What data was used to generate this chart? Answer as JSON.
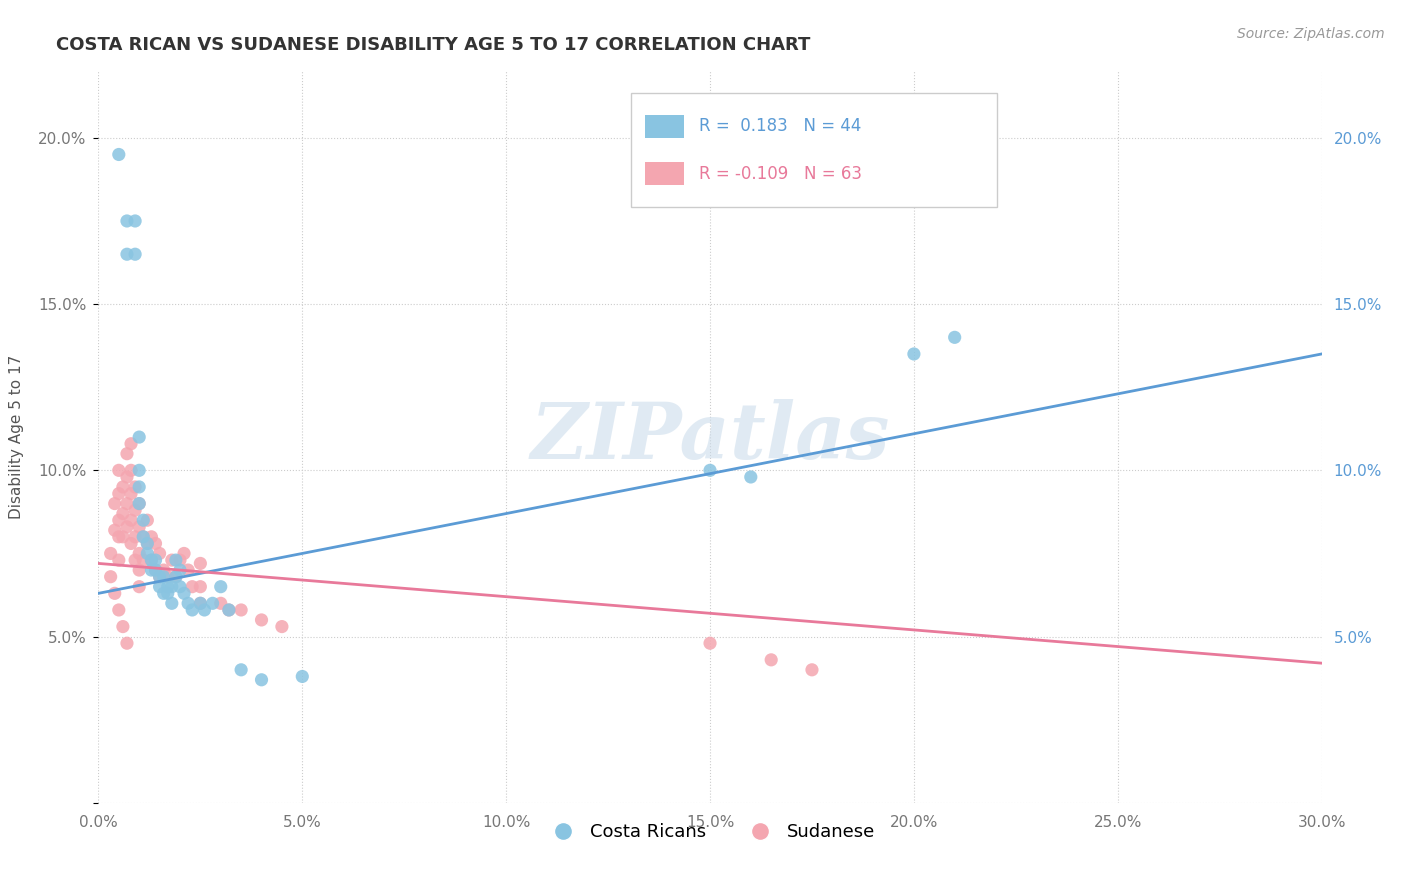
{
  "title": "COSTA RICAN VS SUDANESE DISABILITY AGE 5 TO 17 CORRELATION CHART",
  "source": "Source: ZipAtlas.com",
  "ylabel": "Disability Age 5 to 17",
  "xlim": [
    0.0,
    0.3
  ],
  "ylim": [
    0.0,
    0.22
  ],
  "xticks": [
    0.0,
    0.05,
    0.1,
    0.15,
    0.2,
    0.25,
    0.3
  ],
  "xticklabels": [
    "0.0%",
    "5.0%",
    "10.0%",
    "15.0%",
    "20.0%",
    "25.0%",
    "30.0%"
  ],
  "yticks_left": [
    0.0,
    0.05,
    0.1,
    0.15,
    0.2
  ],
  "yticklabels_left": [
    "",
    "5.0%",
    "10.0%",
    "15.0%",
    "20.0%"
  ],
  "yticks_right": [
    0.05,
    0.1,
    0.15,
    0.2
  ],
  "yticklabels_right": [
    "5.0%",
    "10.0%",
    "15.0%",
    "20.0%"
  ],
  "costa_rican_color": "#89c4e1",
  "sudanese_color": "#f4a6b0",
  "costa_rican_line_color": "#5b9bd5",
  "sudanese_line_color": "#e8799a",
  "R_costa": 0.183,
  "N_costa": 44,
  "R_sudanese": -0.109,
  "N_sudanese": 63,
  "watermark": "ZIPatlas",
  "legend_labels": [
    "Costa Ricans",
    "Sudanese"
  ],
  "costa_rican_x": [
    0.005,
    0.007,
    0.007,
    0.009,
    0.009,
    0.01,
    0.01,
    0.01,
    0.01,
    0.011,
    0.011,
    0.012,
    0.012,
    0.013,
    0.013,
    0.014,
    0.014,
    0.015,
    0.015,
    0.016,
    0.016,
    0.017,
    0.017,
    0.018,
    0.018,
    0.019,
    0.019,
    0.02,
    0.02,
    0.021,
    0.022,
    0.023,
    0.025,
    0.026,
    0.028,
    0.03,
    0.032,
    0.035,
    0.04,
    0.05,
    0.15,
    0.16,
    0.2,
    0.21
  ],
  "costa_rican_y": [
    0.195,
    0.175,
    0.165,
    0.175,
    0.165,
    0.11,
    0.1,
    0.095,
    0.09,
    0.085,
    0.08,
    0.078,
    0.075,
    0.073,
    0.07,
    0.073,
    0.07,
    0.068,
    0.065,
    0.063,
    0.068,
    0.065,
    0.063,
    0.065,
    0.06,
    0.073,
    0.068,
    0.07,
    0.065,
    0.063,
    0.06,
    0.058,
    0.06,
    0.058,
    0.06,
    0.065,
    0.058,
    0.04,
    0.037,
    0.038,
    0.1,
    0.098,
    0.135,
    0.14
  ],
  "sudanese_x": [
    0.003,
    0.004,
    0.004,
    0.005,
    0.005,
    0.005,
    0.005,
    0.005,
    0.006,
    0.006,
    0.006,
    0.007,
    0.007,
    0.007,
    0.007,
    0.008,
    0.008,
    0.008,
    0.008,
    0.008,
    0.009,
    0.009,
    0.009,
    0.009,
    0.01,
    0.01,
    0.01,
    0.01,
    0.01,
    0.011,
    0.011,
    0.012,
    0.012,
    0.013,
    0.013,
    0.014,
    0.014,
    0.015,
    0.015,
    0.016,
    0.017,
    0.018,
    0.019,
    0.02,
    0.021,
    0.022,
    0.023,
    0.025,
    0.025,
    0.025,
    0.03,
    0.032,
    0.035,
    0.04,
    0.045,
    0.15,
    0.165,
    0.175,
    0.003,
    0.004,
    0.005,
    0.006,
    0.007
  ],
  "sudanese_y": [
    0.075,
    0.09,
    0.082,
    0.1,
    0.093,
    0.085,
    0.08,
    0.073,
    0.095,
    0.087,
    0.08,
    0.105,
    0.098,
    0.09,
    0.083,
    0.108,
    0.1,
    0.093,
    0.085,
    0.078,
    0.095,
    0.088,
    0.08,
    0.073,
    0.09,
    0.083,
    0.075,
    0.07,
    0.065,
    0.08,
    0.073,
    0.085,
    0.078,
    0.08,
    0.073,
    0.078,
    0.07,
    0.075,
    0.068,
    0.07,
    0.068,
    0.073,
    0.068,
    0.073,
    0.075,
    0.07,
    0.065,
    0.072,
    0.065,
    0.06,
    0.06,
    0.058,
    0.058,
    0.055,
    0.053,
    0.048,
    0.043,
    0.04,
    0.068,
    0.063,
    0.058,
    0.053,
    0.048
  ],
  "cr_line_x0": 0.0,
  "cr_line_x1": 0.3,
  "cr_line_y0": 0.063,
  "cr_line_y1": 0.135,
  "su_line_x0": 0.0,
  "su_line_x1": 0.3,
  "su_line_y0": 0.072,
  "su_line_y1": 0.042
}
